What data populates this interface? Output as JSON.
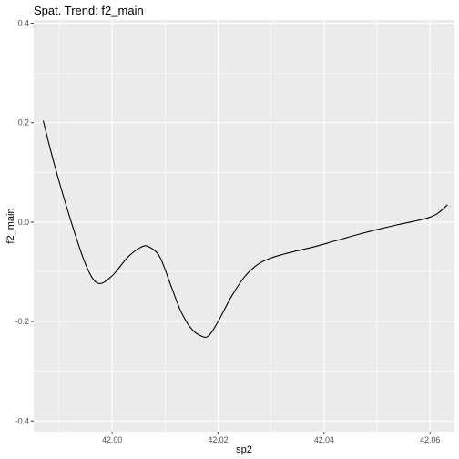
{
  "chart_data": {
    "type": "line",
    "title": "Spat. Trend: f2_main",
    "xlabel": "sp2",
    "ylabel": "f2_main",
    "xlim": [
      41.9852,
      42.0646
    ],
    "ylim": [
      -0.4215,
      0.4065
    ],
    "x_ticks": [
      42.0,
      42.02,
      42.04,
      42.06
    ],
    "x_tick_labels": [
      "42.00",
      "42.02",
      "42.04",
      "42.06"
    ],
    "y_ticks": [
      -0.4,
      -0.2,
      0.0,
      0.2,
      0.4
    ],
    "y_tick_labels": [
      "-0.4",
      "-0.2",
      "0.0",
      "0.2",
      "0.4"
    ],
    "grid": true,
    "colors": {
      "panel": "#ebebeb",
      "grid_major": "#ffffff",
      "line": "#000000"
    },
    "series": [
      {
        "x": [
          41.987,
          41.989,
          41.992,
          41.995,
          41.9973,
          42.0,
          42.003,
          42.0055,
          42.007,
          42.009,
          42.011,
          42.013,
          42.015,
          42.017,
          42.0183,
          42.02,
          42.0225,
          42.025,
          42.0275,
          42.03,
          42.034,
          42.038,
          42.042,
          42.046,
          42.05,
          42.054,
          42.058,
          42.06,
          42.0615,
          42.0633
        ],
        "y": [
          0.204,
          0.12,
          0.01,
          -0.085,
          -0.123,
          -0.108,
          -0.07,
          -0.05,
          -0.05,
          -0.07,
          -0.125,
          -0.18,
          -0.215,
          -0.23,
          -0.228,
          -0.2,
          -0.15,
          -0.11,
          -0.085,
          -0.072,
          -0.06,
          -0.05,
          -0.038,
          -0.026,
          -0.015,
          -0.005,
          0.004,
          0.01,
          0.018,
          0.035
        ]
      }
    ]
  }
}
